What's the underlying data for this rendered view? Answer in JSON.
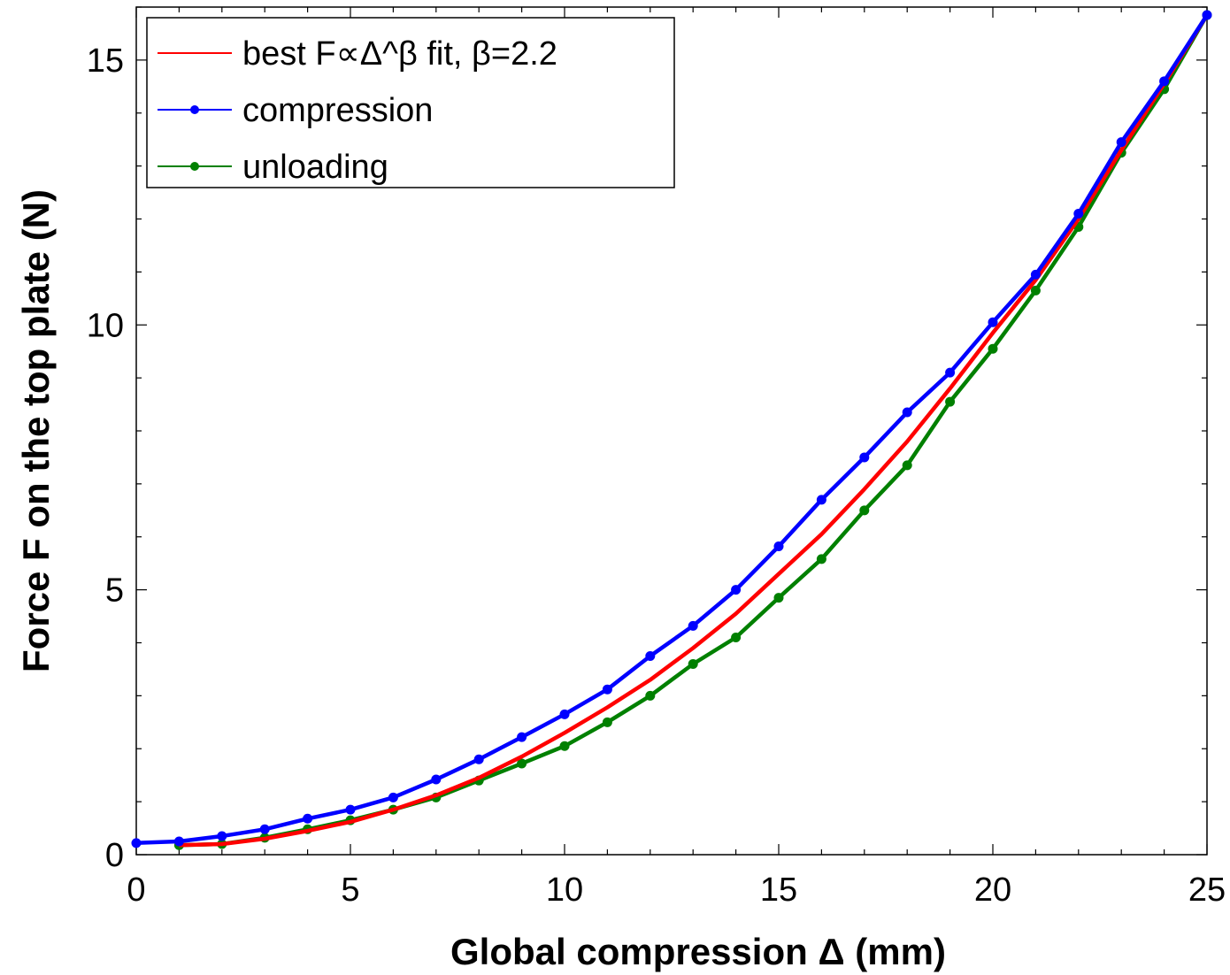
{
  "chart_data": {
    "type": "line",
    "xlabel": "Global compression Δ (mm)",
    "ylabel": "Force F on the top plate (N)",
    "xlim": [
      0,
      25
    ],
    "ylim": [
      0,
      16
    ],
    "xticks": [
      0,
      5,
      10,
      15,
      20,
      25
    ],
    "yticks": [
      0,
      5,
      10,
      15
    ],
    "grid": false,
    "legend_position": "top-left",
    "series": [
      {
        "name": "best F∝Δ^β fit, β=2.2",
        "color": "#ff0000",
        "markers": false,
        "x": [
          1,
          2,
          3,
          4,
          5,
          6,
          7,
          8,
          9,
          10,
          11,
          12,
          13,
          14,
          15,
          16,
          17,
          18,
          19,
          20,
          21,
          22,
          23,
          24,
          25
        ],
        "y": [
          0.18,
          0.2,
          0.3,
          0.45,
          0.62,
          0.85,
          1.12,
          1.45,
          1.85,
          2.3,
          2.78,
          3.3,
          3.9,
          4.55,
          5.3,
          6.05,
          6.9,
          7.8,
          8.8,
          9.85,
          10.85,
          12.0,
          13.3,
          14.55,
          15.85
        ]
      },
      {
        "name": "compression",
        "color": "#0000ff",
        "markers": true,
        "x": [
          0,
          1,
          2,
          3,
          4,
          5,
          6,
          7,
          8,
          9,
          10,
          11,
          12,
          13,
          14,
          15,
          16,
          17,
          18,
          19,
          20,
          21,
          22,
          23,
          24,
          25
        ],
        "y": [
          0.22,
          0.25,
          0.35,
          0.48,
          0.68,
          0.85,
          1.08,
          1.42,
          1.8,
          2.22,
          2.65,
          3.12,
          3.75,
          4.32,
          5.0,
          5.82,
          6.7,
          7.5,
          8.35,
          9.1,
          10.05,
          10.95,
          12.1,
          13.45,
          14.6,
          15.85
        ]
      },
      {
        "name": "unloading",
        "color": "#008000",
        "markers": true,
        "x": [
          1,
          2,
          3,
          4,
          5,
          6,
          7,
          8,
          9,
          10,
          11,
          12,
          13,
          14,
          15,
          16,
          17,
          18,
          19,
          20,
          21,
          22,
          23,
          24,
          25
        ],
        "y": [
          0.18,
          0.2,
          0.32,
          0.48,
          0.65,
          0.85,
          1.08,
          1.4,
          1.72,
          2.05,
          2.5,
          3.0,
          3.6,
          4.1,
          4.85,
          5.58,
          6.5,
          7.35,
          8.55,
          9.55,
          10.65,
          11.85,
          13.25,
          14.45,
          15.85
        ]
      }
    ]
  }
}
